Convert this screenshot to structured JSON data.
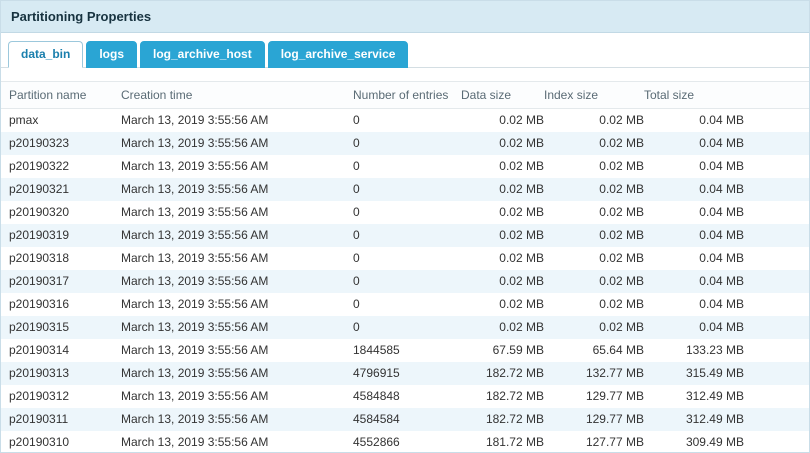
{
  "panel": {
    "title": "Partitioning Properties"
  },
  "tabs": [
    {
      "label": "data_bin",
      "active": true
    },
    {
      "label": "logs",
      "active": false
    },
    {
      "label": "log_archive_host",
      "active": false
    },
    {
      "label": "log_archive_service",
      "active": false
    }
  ],
  "table": {
    "columns": [
      "Partition name",
      "Creation time",
      "Number of entries",
      "Data size",
      "Index size",
      "Total size"
    ],
    "rows": [
      [
        "pmax",
        "March 13, 2019 3:55:56 AM",
        "0",
        "0.02 MB",
        "0.02 MB",
        "0.04 MB"
      ],
      [
        "p20190323",
        "March 13, 2019 3:55:56 AM",
        "0",
        "0.02 MB",
        "0.02 MB",
        "0.04 MB"
      ],
      [
        "p20190322",
        "March 13, 2019 3:55:56 AM",
        "0",
        "0.02 MB",
        "0.02 MB",
        "0.04 MB"
      ],
      [
        "p20190321",
        "March 13, 2019 3:55:56 AM",
        "0",
        "0.02 MB",
        "0.02 MB",
        "0.04 MB"
      ],
      [
        "p20190320",
        "March 13, 2019 3:55:56 AM",
        "0",
        "0.02 MB",
        "0.02 MB",
        "0.04 MB"
      ],
      [
        "p20190319",
        "March 13, 2019 3:55:56 AM",
        "0",
        "0.02 MB",
        "0.02 MB",
        "0.04 MB"
      ],
      [
        "p20190318",
        "March 13, 2019 3:55:56 AM",
        "0",
        "0.02 MB",
        "0.02 MB",
        "0.04 MB"
      ],
      [
        "p20190317",
        "March 13, 2019 3:55:56 AM",
        "0",
        "0.02 MB",
        "0.02 MB",
        "0.04 MB"
      ],
      [
        "p20190316",
        "March 13, 2019 3:55:56 AM",
        "0",
        "0.02 MB",
        "0.02 MB",
        "0.04 MB"
      ],
      [
        "p20190315",
        "March 13, 2019 3:55:56 AM",
        "0",
        "0.02 MB",
        "0.02 MB",
        "0.04 MB"
      ],
      [
        "p20190314",
        "March 13, 2019 3:55:56 AM",
        "1844585",
        "67.59 MB",
        "65.64 MB",
        "133.23 MB"
      ],
      [
        "p20190313",
        "March 13, 2019 3:55:56 AM",
        "4796915",
        "182.72 MB",
        "132.77 MB",
        "315.49 MB"
      ],
      [
        "p20190312",
        "March 13, 2019 3:55:56 AM",
        "4584848",
        "182.72 MB",
        "129.77 MB",
        "312.49 MB"
      ],
      [
        "p20190311",
        "March 13, 2019 3:55:56 AM",
        "4584584",
        "182.72 MB",
        "129.77 MB",
        "312.49 MB"
      ],
      [
        "p20190310",
        "March 13, 2019 3:55:56 AM",
        "4552866",
        "181.72 MB",
        "127.77 MB",
        "309.49 MB"
      ]
    ]
  },
  "colors": {
    "header-bg": "#d7eaf3",
    "tab-bg": "#2aa5d4",
    "tab-active-text": "#1a7fad",
    "row-alt": "#edf6fb"
  }
}
